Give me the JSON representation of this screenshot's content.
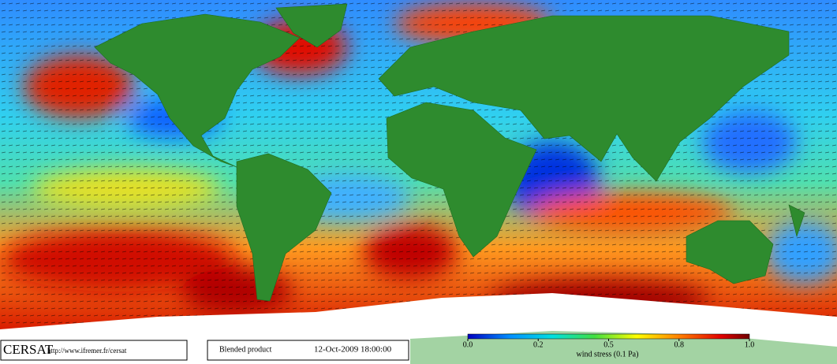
{
  "footer": {
    "logo": "CERSAT",
    "url": "http://www.ifremer.fr/cersat",
    "product": "Blended product",
    "timestamp": "12-Oct-2009 18:00:00"
  },
  "colorbar": {
    "title": "wind stress (0.1 Pa)",
    "ticks": [
      {
        "value": 0,
        "label": "0.0"
      },
      0.2,
      0.5,
      0.8,
      {
        "value": 1,
        "label": "1.0"
      }
    ]
  }
}
